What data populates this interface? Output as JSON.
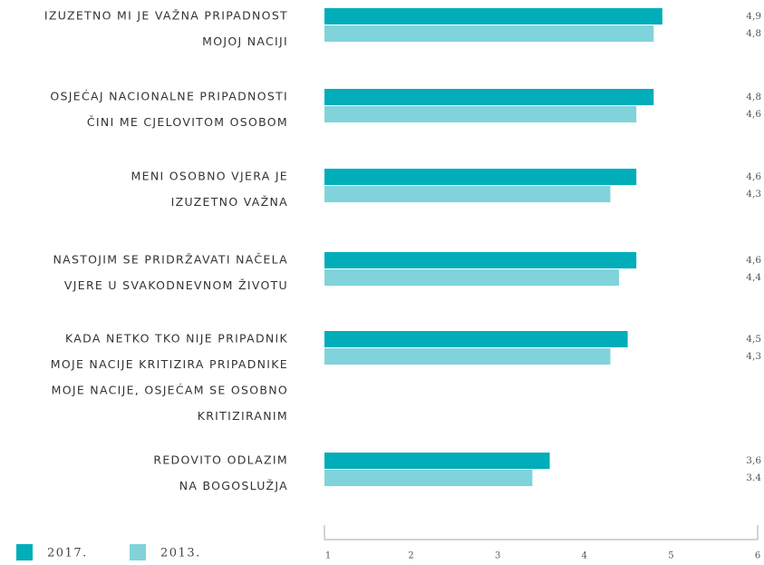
{
  "chart_data": {
    "type": "bar",
    "orientation": "horizontal",
    "categories": [
      [
        "IZUZETNO MI JE VAŽNA PRIPADNOST",
        "MOJOJ NACIJI"
      ],
      [
        "OSJEĆAJ NACIONALNE PRIPADNOSTI",
        "ČINI ME CJELOVITOM OSOBOM"
      ],
      [
        "MENI OSOBNO VJERA JE",
        "IZUZETNO VAŽNA"
      ],
      [
        "NASTOJIM SE PRIDRŽAVATI NAČELA",
        "VJERE U SVAKODNEVNOM ŽIVOTU"
      ],
      [
        "KADA NETKO TKO NIJE PRIPADNIK",
        "MOJE NACIJE KRITIZIRA PRIPADNIKE",
        "MOJE NACIJE, OSJEĆAM SE OSOBNO",
        "KRITIZIRANIM"
      ],
      [
        "REDOVITO ODLAZIM",
        "NA BOGOSLUŽJA"
      ]
    ],
    "series": [
      {
        "name": "2017.",
        "color": "#00adb9",
        "values": [
          4.9,
          4.8,
          4.6,
          4.6,
          4.5,
          3.6
        ],
        "value_labels": [
          "4,9",
          "4,8",
          "4,6",
          "4,6",
          "4,5",
          "3,6"
        ]
      },
      {
        "name": "2013.",
        "color": "#80d3da",
        "values": [
          4.8,
          4.6,
          4.3,
          4.4,
          4.3,
          3.4
        ],
        "value_labels": [
          "4,8",
          "4,6",
          "4,3",
          "4,4",
          "4,3",
          "3.4"
        ]
      }
    ],
    "xlim": [
      1,
      6
    ],
    "xticks": [
      1,
      2,
      3,
      4,
      5,
      6
    ],
    "grid": false,
    "legend": "bottom-left"
  }
}
